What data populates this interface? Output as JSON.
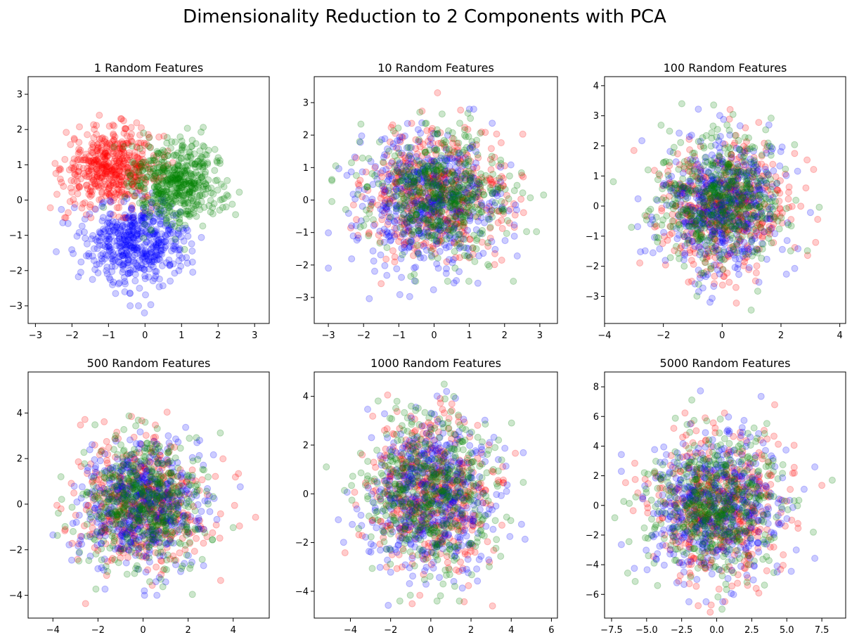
{
  "figure": {
    "suptitle": "Dimensionality Reduction to 2 Components with PCA"
  },
  "colors": {
    "red": "#ff0000",
    "green": "#008000",
    "blue": "#0000ff"
  },
  "chart_data": [
    {
      "type": "scatter",
      "title": "1 Random Features",
      "xlabel": "",
      "ylabel": "",
      "xlim": [
        -3.2,
        3.4
      ],
      "ylim": [
        -3.5,
        3.5
      ],
      "xticks": [
        -3,
        -2,
        -1,
        0,
        1,
        2,
        3
      ],
      "yticks": [
        -3,
        -2,
        -1,
        0,
        1,
        2,
        3
      ],
      "grid": false,
      "marker_alpha": 0.2,
      "series": [
        {
          "color": "red",
          "n_points": 500,
          "center": [
            -0.9,
            0.9
          ],
          "spread": [
            0.65,
            0.55
          ],
          "extent_x": [
            -2.9,
            1.0
          ],
          "extent_y": [
            -0.5,
            3.3
          ]
        },
        {
          "color": "green",
          "n_points": 500,
          "center": [
            0.9,
            0.5
          ],
          "spread": [
            0.65,
            0.6
          ],
          "extent_x": [
            -1.3,
            3.1
          ],
          "extent_y": [
            -1.4,
            2.4
          ]
        },
        {
          "color": "blue",
          "n_points": 500,
          "center": [
            -0.2,
            -1.2
          ],
          "spread": [
            0.7,
            0.6
          ],
          "extent_x": [
            -2.7,
            1.8
          ],
          "extent_y": [
            -3.2,
            0.2
          ]
        }
      ]
    },
    {
      "type": "scatter",
      "title": "10 Random Features",
      "xlabel": "",
      "ylabel": "",
      "xlim": [
        -3.4,
        3.5
      ],
      "ylim": [
        -3.8,
        3.8
      ],
      "xticks": [
        -3,
        -2,
        -1,
        0,
        1,
        2,
        3
      ],
      "yticks": [
        -3,
        -2,
        -1,
        0,
        1,
        2,
        3
      ],
      "grid": false,
      "marker_alpha": 0.2,
      "series": [
        {
          "color": "red",
          "n_points": 500,
          "center": [
            0.1,
            0.1
          ],
          "spread": [
            1.0,
            1.0
          ],
          "extent_x": [
            -3.0,
            3.2
          ],
          "extent_y": [
            -3.3,
            3.5
          ]
        },
        {
          "color": "green",
          "n_points": 500,
          "center": [
            0.2,
            0.2
          ],
          "spread": [
            1.0,
            1.0
          ],
          "extent_x": [
            -2.9,
            3.2
          ],
          "extent_y": [
            -2.5,
            3.1
          ]
        },
        {
          "color": "blue",
          "n_points": 500,
          "center": [
            -0.2,
            -0.1
          ],
          "spread": [
            1.0,
            1.0
          ],
          "extent_x": [
            -3.0,
            2.9
          ],
          "extent_y": [
            -3.5,
            2.8
          ]
        }
      ]
    },
    {
      "type": "scatter",
      "title": "100 Random Features",
      "xlabel": "",
      "ylabel": "",
      "xlim": [
        -4.0,
        4.2
      ],
      "ylim": [
        -3.9,
        4.3
      ],
      "xticks": [
        -4,
        -2,
        0,
        2,
        4
      ],
      "yticks": [
        -3,
        -2,
        -1,
        0,
        1,
        2,
        3,
        4
      ],
      "grid": false,
      "marker_alpha": 0.2,
      "series": [
        {
          "color": "red",
          "n_points": 500,
          "center": [
            0.0,
            -0.1
          ],
          "spread": [
            1.1,
            1.1
          ],
          "extent_x": [
            -3.0,
            3.9
          ],
          "extent_y": [
            -3.3,
            3.9
          ]
        },
        {
          "color": "green",
          "n_points": 500,
          "center": [
            -0.1,
            0.2
          ],
          "spread": [
            1.1,
            1.1
          ],
          "extent_x": [
            -3.7,
            3.3
          ],
          "extent_y": [
            -3.5,
            3.4
          ]
        },
        {
          "color": "blue",
          "n_points": 500,
          "center": [
            0.0,
            0.0
          ],
          "spread": [
            1.1,
            1.1
          ],
          "extent_x": [
            -3.5,
            3.6
          ],
          "extent_y": [
            -3.4,
            3.6
          ]
        }
      ]
    },
    {
      "type": "scatter",
      "title": "500 Random Features",
      "xlabel": "",
      "ylabel": "",
      "xlim": [
        -5.1,
        5.6
      ],
      "ylim": [
        -5.0,
        5.8
      ],
      "xticks": [
        -4,
        -2,
        0,
        2,
        4
      ],
      "yticks": [
        -4,
        -2,
        0,
        2,
        4
      ],
      "grid": false,
      "marker_alpha": 0.2,
      "series": [
        {
          "color": "red",
          "n_points": 500,
          "center": [
            0.0,
            0.0
          ],
          "spread": [
            1.4,
            1.4
          ],
          "extent_x": [
            -4.8,
            5.2
          ],
          "extent_y": [
            -4.4,
            5.4
          ]
        },
        {
          "color": "green",
          "n_points": 500,
          "center": [
            0.0,
            0.0
          ],
          "spread": [
            1.4,
            1.4
          ],
          "extent_x": [
            -4.2,
            4.0
          ],
          "extent_y": [
            -4.5,
            4.5
          ]
        },
        {
          "color": "blue",
          "n_points": 500,
          "center": [
            0.0,
            0.0
          ],
          "spread": [
            1.4,
            1.4
          ],
          "extent_x": [
            -4.0,
            4.9
          ],
          "extent_y": [
            -4.0,
            4.9
          ]
        }
      ]
    },
    {
      "type": "scatter",
      "title": "1000 Random Features",
      "xlabel": "",
      "ylabel": "",
      "xlim": [
        -5.8,
        6.3
      ],
      "ylim": [
        -5.1,
        5.0
      ],
      "xticks": [
        -4,
        -2,
        0,
        2,
        4,
        6
      ],
      "yticks": [
        -4,
        -2,
        0,
        2,
        4
      ],
      "grid": false,
      "marker_alpha": 0.2,
      "series": [
        {
          "color": "red",
          "n_points": 500,
          "center": [
            0.0,
            0.0
          ],
          "spread": [
            1.6,
            1.6
          ],
          "extent_x": [
            -4.5,
            5.0
          ],
          "extent_y": [
            -4.6,
            4.2
          ]
        },
        {
          "color": "green",
          "n_points": 500,
          "center": [
            0.0,
            0.0
          ],
          "spread": [
            1.6,
            1.6
          ],
          "extent_x": [
            -5.2,
            4.6
          ],
          "extent_y": [
            -4.4,
            4.5
          ]
        },
        {
          "color": "blue",
          "n_points": 500,
          "center": [
            0.0,
            0.0
          ],
          "spread": [
            1.6,
            1.6
          ],
          "extent_x": [
            -4.6,
            5.8
          ],
          "extent_y": [
            -4.6,
            4.2
          ]
        }
      ]
    },
    {
      "type": "scatter",
      "title": "5000 Random Features",
      "xlabel": "",
      "ylabel": "",
      "xlim": [
        -8.0,
        9.2
      ],
      "ylim": [
        -7.6,
        9.0
      ],
      "xticks": [
        -7.5,
        -5.0,
        -2.5,
        0.0,
        2.5,
        5.0,
        7.5
      ],
      "xtick_labels": [
        "−7.5",
        "−5.0",
        "−2.5",
        "0.0",
        "2.5",
        "5.0",
        "7.5"
      ],
      "yticks": [
        -6,
        -4,
        -2,
        0,
        2,
        4,
        6,
        8
      ],
      "grid": false,
      "marker_alpha": 0.2,
      "series": [
        {
          "color": "red",
          "n_points": 500,
          "center": [
            0.0,
            0.0
          ],
          "spread": [
            2.4,
            2.4
          ],
          "extent_x": [
            -6.5,
            7.5
          ],
          "extent_y": [
            -7.2,
            8.5
          ]
        },
        {
          "color": "green",
          "n_points": 500,
          "center": [
            0.0,
            0.0
          ],
          "spread": [
            2.4,
            2.4
          ],
          "extent_x": [
            -7.3,
            8.5
          ],
          "extent_y": [
            -7.0,
            7.6
          ]
        },
        {
          "color": "blue",
          "n_points": 500,
          "center": [
            0.0,
            0.0
          ],
          "spread": [
            2.4,
            2.4
          ],
          "extent_x": [
            -6.8,
            7.0
          ],
          "extent_y": [
            -6.5,
            7.8
          ]
        }
      ]
    }
  ]
}
